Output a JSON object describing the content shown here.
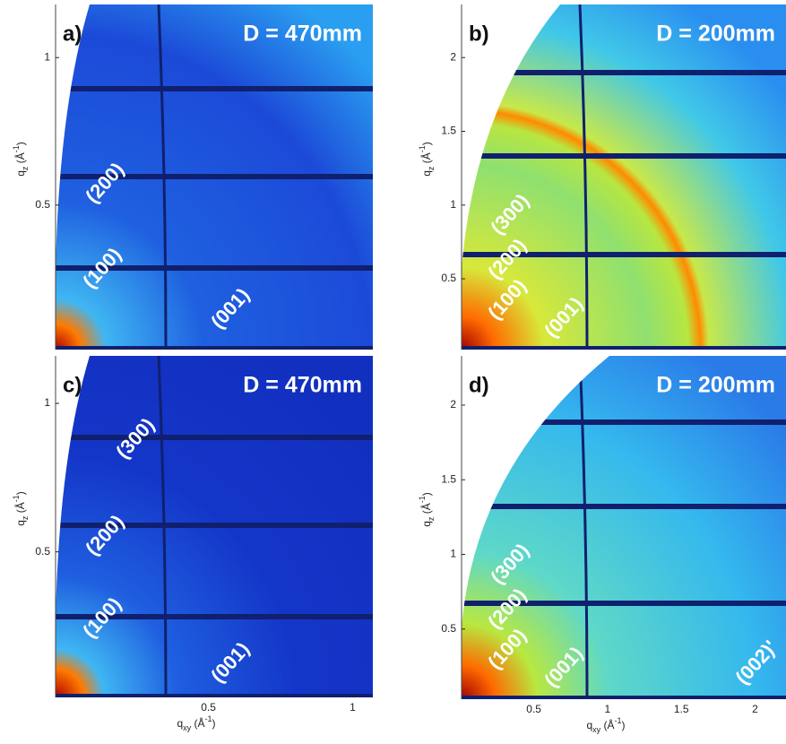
{
  "chart_data": [
    {
      "type": "image",
      "panel": "a)",
      "title": "D = 470mm",
      "ylabel": [
        "q",
        "z",
        " (Å",
        "-1",
        ")"
      ],
      "xlim": [
        -0.03,
        1.07
      ],
      "ylim": [
        0.01,
        1.18
      ],
      "yticks": [
        0.5,
        1
      ],
      "annotations": [
        "(200)",
        "(100)",
        "(001)"
      ]
    },
    {
      "type": "image",
      "panel": "b)",
      "title": "D = 200mm",
      "ylabel": [
        "q",
        "z",
        " (Å",
        "-1",
        ")"
      ],
      "xlim": [
        0.01,
        2.21
      ],
      "ylim": [
        0.02,
        2.36
      ],
      "yticks": [
        0.5,
        1,
        1.5,
        2
      ],
      "annotations": [
        "(300)",
        "(200)",
        "(100)",
        "(001)"
      ]
    },
    {
      "type": "image",
      "panel": "c)",
      "title": "D = 470mm",
      "ylabel": [
        "q",
        "z",
        " (Å",
        "-1",
        ")"
      ],
      "xlabel": [
        "q",
        "xy",
        " (Å",
        "-1",
        ")"
      ],
      "xlim": [
        -0.03,
        1.07
      ],
      "ylim": [
        0.01,
        1.16
      ],
      "xticks": [
        0.5,
        1
      ],
      "yticks": [
        0.5,
        1
      ],
      "annotations": [
        "(300)",
        "(200)",
        "(100)",
        "(001)"
      ]
    },
    {
      "type": "image",
      "panel": "d)",
      "title": "D = 200mm",
      "ylabel": [
        "q",
        "z",
        " (Å",
        "-1",
        ")"
      ],
      "xlabel": [
        "q",
        "xy",
        " (Å",
        "-1",
        ")"
      ],
      "xlim": [
        0.01,
        2.21
      ],
      "ylim": [
        0.03,
        2.33
      ],
      "xticks": [
        0.5,
        1,
        1.5,
        2
      ],
      "yticks": [
        0.5,
        1,
        1.5,
        2
      ],
      "annotations": [
        "(300)",
        "(200)",
        "(100)",
        "(001)",
        "(002)'"
      ]
    }
  ]
}
